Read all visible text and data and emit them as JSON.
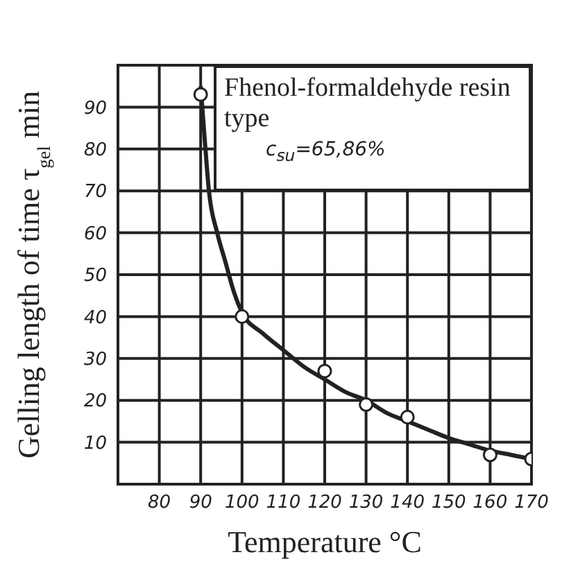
{
  "chart_data": {
    "type": "scatter",
    "xlabel": "Temperature °C",
    "ylabel": "Gelling length of time τ$_{gel}$ min",
    "annotations": [
      "Fhenol-formaldehyde resin type",
      "c$_{su}$=65,86%"
    ],
    "xlim": [
      70,
      170
    ],
    "xticks": [
      80,
      90,
      100,
      110,
      120,
      130,
      140,
      150,
      160,
      170
    ],
    "ylim": [
      0,
      100
    ],
    "yticks": [
      10,
      20,
      30,
      40,
      50,
      60,
      70,
      80,
      90
    ],
    "grid": true,
    "series": [
      {
        "color": "#222222",
        "marker": "circle",
        "x": [
          90,
          100,
          120,
          130,
          140,
          160,
          170
        ],
        "values": [
          93,
          40,
          27,
          19,
          16,
          7,
          6
        ]
      },
      {
        "type": "line",
        "color": "#222222",
        "marker": "none",
        "line_style": "solid",
        "x": [
          90,
          91,
          92,
          94,
          96,
          98,
          100,
          105,
          110,
          115,
          120,
          125,
          130,
          135,
          140,
          145,
          150,
          155,
          160,
          165,
          170
        ],
        "values": [
          95,
          82,
          70,
          60,
          53,
          46,
          41,
          36,
          32,
          28,
          25,
          22,
          20,
          17,
          15,
          13,
          11,
          9.5,
          8,
          7,
          6
        ]
      }
    ]
  }
}
